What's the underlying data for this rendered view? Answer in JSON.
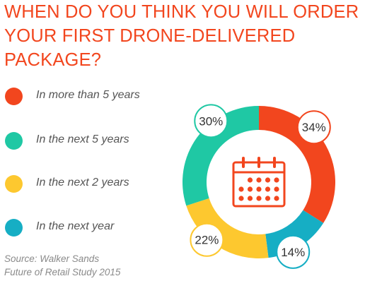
{
  "title": {
    "line1": "WHEN DO YOU THINK YOU WILL ORDER",
    "line2": "YOUR FIRST DRONE-DELIVERED PACKAGE?"
  },
  "legend": [
    {
      "label": "In more than 5 years",
      "color": "#f2461e"
    },
    {
      "label": "In the next 5 years",
      "color": "#1fc8a4"
    },
    {
      "label": "In the next 2 years",
      "color": "#fdc82f"
    },
    {
      "label": "In the next year",
      "color": "#16aec4"
    }
  ],
  "source": {
    "line1": "Source: Walker Sands",
    "line2": "Future of Retail Study 2015"
  },
  "center_icon": "calendar-icon",
  "chart_data": {
    "type": "pie",
    "donut": true,
    "title": "WHEN DO YOU THINK YOU WILL ORDER YOUR FIRST DRONE-DELIVERED PACKAGE?",
    "categories": [
      "In more than 5 years",
      "In the next year",
      "In the next 2 years",
      "In the next 5 years"
    ],
    "values": [
      34,
      14,
      22,
      30
    ],
    "labels": [
      "34%",
      "14%",
      "22%",
      "30%"
    ],
    "colors": [
      "#f2461e",
      "#16aec4",
      "#fdc82f",
      "#1fc8a4"
    ],
    "legend_position": "left",
    "unit": "%"
  }
}
